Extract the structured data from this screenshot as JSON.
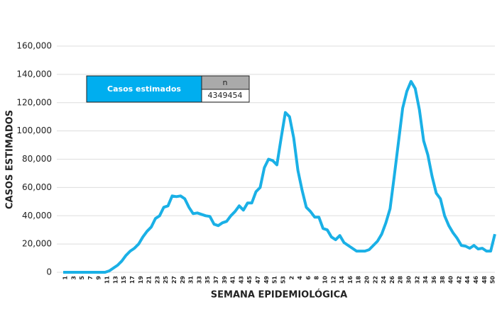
{
  "chart_data": {
    "type": "line",
    "y_label": "CASOS ESTIMADOS",
    "x_label": "SEMANA EPIDEMIOLÓGICA",
    "categories": [
      "1",
      null,
      "3",
      null,
      "5",
      null,
      "7",
      null,
      "9",
      null,
      "11",
      null,
      "13",
      null,
      "15",
      null,
      "17",
      null,
      "19",
      null,
      "21",
      null,
      "23",
      null,
      "25",
      null,
      "27",
      null,
      "29",
      null,
      "31",
      null,
      "33",
      null,
      "35",
      null,
      "37",
      null,
      "39",
      null,
      "41",
      null,
      "43",
      null,
      "45",
      null,
      "47",
      null,
      "49",
      null,
      "51",
      null,
      "53",
      null,
      "2",
      null,
      "4",
      null,
      "6",
      null,
      "8",
      null,
      "10",
      null,
      "12",
      null,
      "14",
      null,
      "16",
      null,
      "18",
      null,
      "20",
      null,
      "22",
      null,
      "24",
      null,
      "26",
      null,
      "28",
      null,
      "30",
      null,
      "32",
      null,
      "34",
      null,
      "36",
      null,
      "38",
      null,
      "40",
      null,
      "42",
      null,
      "44",
      null,
      "46",
      null,
      "48",
      null,
      "50",
      null
    ],
    "series": [
      {
        "name": "Casos estimados",
        "color": "#1ab0e6",
        "values": [
          0,
          0,
          0,
          0,
          0,
          0,
          0,
          0,
          0,
          0,
          0,
          1000,
          3000,
          5000,
          8000,
          12000,
          15000,
          17000,
          20000,
          25000,
          29000,
          32000,
          38000,
          40000,
          46000,
          47000,
          54000,
          53500,
          54000,
          52000,
          46000,
          41500,
          42000,
          41000,
          40000,
          39500,
          34000,
          33000,
          35000,
          36000,
          40000,
          43000,
          47000,
          44000,
          49000,
          49000,
          57000,
          60000,
          74000,
          80000,
          79000,
          76000,
          95000,
          113000,
          110000,
          95000,
          72000,
          58000,
          46000,
          43000,
          39000,
          39000,
          31000,
          30000,
          25000,
          23000,
          26000,
          21000,
          19000,
          17000,
          15000,
          15000,
          15000,
          16000,
          19000,
          22000,
          27000,
          35000,
          45000,
          68000,
          92000,
          116000,
          128000,
          135000,
          130000,
          115000,
          93000,
          83000,
          68000,
          56000,
          52000,
          40000,
          33000,
          28000,
          24000,
          19000,
          18500,
          17000,
          19000,
          16500,
          17000,
          15000,
          15000,
          27000
        ]
      }
    ],
    "legend_table": {
      "header": "n",
      "value": "4349454"
    },
    "ylim": [
      0,
      160000
    ],
    "yticks": [
      0,
      {
        "value": 20000,
        "label": "20,000"
      },
      {
        "value": 40000,
        "label": "40,000"
      },
      {
        "value": 60000,
        "label": "60,000"
      },
      {
        "value": 80000,
        "label": "80,000"
      },
      {
        "value": 100000,
        "label": "100,000"
      },
      {
        "value": 120000,
        "label": "120,000"
      },
      {
        "value": 140000,
        "label": "140,000"
      },
      {
        "value": 160000,
        "label": "160,000"
      }
    ],
    "grid": true
  }
}
